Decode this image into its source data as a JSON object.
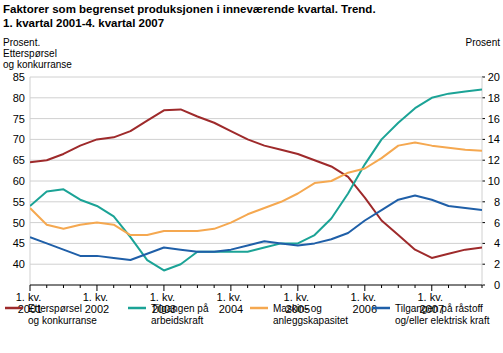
{
  "chart_data": {
    "type": "line",
    "title": "Faktorer som begrenset produksjonen i inneværende kvartal. Trend.",
    "subtitle": "1. kvartal 2001-4. kvartal 2007",
    "ylabel": [
      "Prosent.",
      "Etterspørsel",
      "og konkurranse"
    ],
    "y2label": "Prosent",
    "categories": [
      "1. kv. 2001",
      null,
      null,
      null,
      "1. kv. 2002",
      null,
      null,
      null,
      "1. kv. 2003",
      null,
      null,
      null,
      "1. kv. 2004",
      null,
      null,
      null,
      "1. kv. 2005",
      null,
      null,
      null,
      "1. kv. 2006",
      null,
      null,
      null,
      "1. kv. 2007",
      null,
      null,
      null
    ],
    "ylim": [
      35,
      85
    ],
    "yticks": [
      40,
      45,
      50,
      55,
      60,
      65,
      70,
      75,
      80,
      85
    ],
    "y2lim": [
      0,
      20
    ],
    "y2ticks": [
      0,
      2,
      4,
      6,
      8,
      10,
      12,
      14,
      16,
      18,
      20
    ],
    "grid": true,
    "legend": "bottom",
    "series": [
      {
        "name": "Etterspørsel og konkurranse",
        "color": "#9e2a2b",
        "values": [
          64.5,
          65,
          66.5,
          68.5,
          70,
          70.5,
          72,
          74.5,
          77,
          77.2,
          75.5,
          74,
          72,
          70,
          68.5,
          67.5,
          66.5,
          65,
          63.5,
          61,
          56,
          50.5,
          47,
          43.5,
          41.5,
          42.5,
          43.5,
          44
        ]
      },
      {
        "name": "Tilgangen på arbeidskraft",
        "color": "#1ba396",
        "axis": "y2",
        "values": [
          7.6,
          9.0,
          9.2,
          8.2,
          7.6,
          6.6,
          4.6,
          2.4,
          1.4,
          2.0,
          3.2,
          3.2,
          3.2,
          3.2,
          3.6,
          4.0,
          4.0,
          4.8,
          6.4,
          8.8,
          11.6,
          14.0,
          15.6,
          17.0,
          18.0,
          18.4,
          18.6,
          18.8
        ]
      },
      {
        "name": "Maskin- og anleggskapasitet",
        "color": "#f5a850",
        "axis": "y2",
        "values": [
          7.4,
          5.8,
          5.4,
          5.8,
          6.0,
          5.8,
          4.8,
          4.8,
          5.2,
          5.2,
          5.2,
          5.4,
          6.0,
          6.8,
          7.4,
          8.0,
          8.8,
          9.8,
          10.0,
          10.8,
          11.2,
          12.2,
          13.4,
          13.7,
          13.4,
          13.2,
          13.0,
          12.9
        ]
      },
      {
        "name": "Tilgangen på råstoff og/eller elektrisk kraft",
        "color": "#1f5fa8",
        "axis": "y2",
        "values": [
          4.6,
          4.0,
          3.4,
          2.8,
          2.8,
          2.6,
          2.4,
          3.0,
          3.6,
          3.4,
          3.2,
          3.2,
          3.4,
          3.8,
          4.2,
          4.0,
          3.8,
          4.0,
          4.4,
          5.0,
          6.2,
          7.2,
          8.2,
          8.6,
          8.2,
          7.6,
          7.4,
          7.2
        ]
      }
    ]
  }
}
